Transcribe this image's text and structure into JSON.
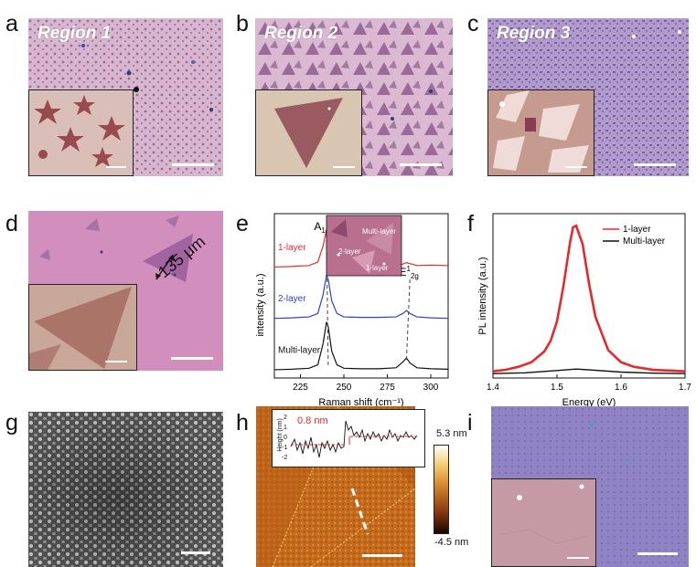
{
  "panels": {
    "a": {
      "label": "a",
      "title": "Region 1"
    },
    "b": {
      "label": "b",
      "title": "Region 2"
    },
    "c": {
      "label": "c",
      "title": "Region 3"
    },
    "d": {
      "label": "d",
      "annotation": "135 μm"
    },
    "e": {
      "label": "e"
    },
    "f": {
      "label": "f"
    },
    "g": {
      "label": "g"
    },
    "h": {
      "label": "h",
      "profile_label": "0.8 nm",
      "profile_ylabel": "Height (nm)",
      "colorbar_max": "5.3 nm",
      "colorbar_min": "-4.5 nm"
    },
    "i": {
      "label": "i"
    }
  },
  "colors": {
    "optical_pink": "#c991b6",
    "flake": "#9a5b84",
    "sio2_purple": "#8f83c4",
    "red": "#e8282a",
    "blue": "#2b3fd8",
    "black": "#111111"
  },
  "chart_data": [
    {
      "type": "line",
      "panel": "e",
      "xlabel": "Raman shift (cm⁻¹)",
      "ylabel": "intensity (a.u.)",
      "xlim": [
        210,
        310
      ],
      "xticks": [
        225,
        250,
        275,
        300
      ],
      "series": [
        {
          "name": "1-layer",
          "color": "#e8282a",
          "offset": 2.0,
          "x": [
            210,
            220,
            230,
            235,
            238,
            240,
            241,
            243,
            246,
            250,
            260,
            270,
            280,
            284,
            286,
            288,
            292,
            300,
            310
          ],
          "y": [
            0.02,
            0.03,
            0.05,
            0.12,
            0.45,
            0.78,
            0.72,
            0.35,
            0.12,
            0.05,
            0.04,
            0.04,
            0.05,
            0.08,
            0.11,
            0.09,
            0.05,
            0.06,
            0.05
          ]
        },
        {
          "name": "2-layer",
          "color": "#2b3fd8",
          "offset": 1.0,
          "x": [
            210,
            220,
            230,
            235,
            238,
            240,
            241,
            243,
            246,
            250,
            260,
            270,
            280,
            284,
            286,
            288,
            292,
            300,
            310
          ],
          "y": [
            0.02,
            0.03,
            0.05,
            0.12,
            0.5,
            0.9,
            0.82,
            0.38,
            0.12,
            0.05,
            0.04,
            0.04,
            0.05,
            0.12,
            0.18,
            0.12,
            0.05,
            0.03,
            0.02
          ]
        },
        {
          "name": "Multi-layer",
          "color": "#111111",
          "offset": 0.0,
          "x": [
            210,
            220,
            230,
            235,
            238,
            240,
            241,
            243,
            246,
            250,
            260,
            270,
            280,
            284,
            286,
            288,
            292,
            300,
            310
          ],
          "y": [
            0.02,
            0.03,
            0.05,
            0.12,
            0.55,
            1.0,
            0.9,
            0.4,
            0.12,
            0.05,
            0.04,
            0.04,
            0.06,
            0.18,
            0.26,
            0.16,
            0.06,
            0.04,
            0.03
          ]
        }
      ],
      "annotations": [
        "A1g",
        "E12g"
      ],
      "inset_labels": [
        "Multi-layer",
        "2-layer",
        "1-layer"
      ]
    },
    {
      "type": "line",
      "panel": "f",
      "xlabel": "Energy (eV)",
      "ylabel": "PL intensity (a.u.)",
      "xlim": [
        1.4,
        1.7
      ],
      "xticks": [
        1.4,
        1.5,
        1.6,
        1.7
      ],
      "legend": "top-right",
      "series": [
        {
          "name": "1-layer",
          "color": "#e8282a",
          "x": [
            1.4,
            1.42,
            1.44,
            1.46,
            1.48,
            1.49,
            1.5,
            1.51,
            1.52,
            1.525,
            1.53,
            1.54,
            1.55,
            1.56,
            1.58,
            1.6,
            1.62,
            1.65,
            1.7
          ],
          "y": [
            0.02,
            0.03,
            0.05,
            0.08,
            0.15,
            0.22,
            0.35,
            0.58,
            0.86,
            0.97,
            0.98,
            0.86,
            0.6,
            0.38,
            0.16,
            0.08,
            0.05,
            0.03,
            0.02
          ]
        },
        {
          "name": "Multi-layer",
          "color": "#111111",
          "x": [
            1.4,
            1.45,
            1.5,
            1.53,
            1.55,
            1.6,
            1.65,
            1.7
          ],
          "y": [
            0.005,
            0.01,
            0.025,
            0.035,
            0.03,
            0.015,
            0.008,
            0.005
          ]
        }
      ]
    }
  ]
}
